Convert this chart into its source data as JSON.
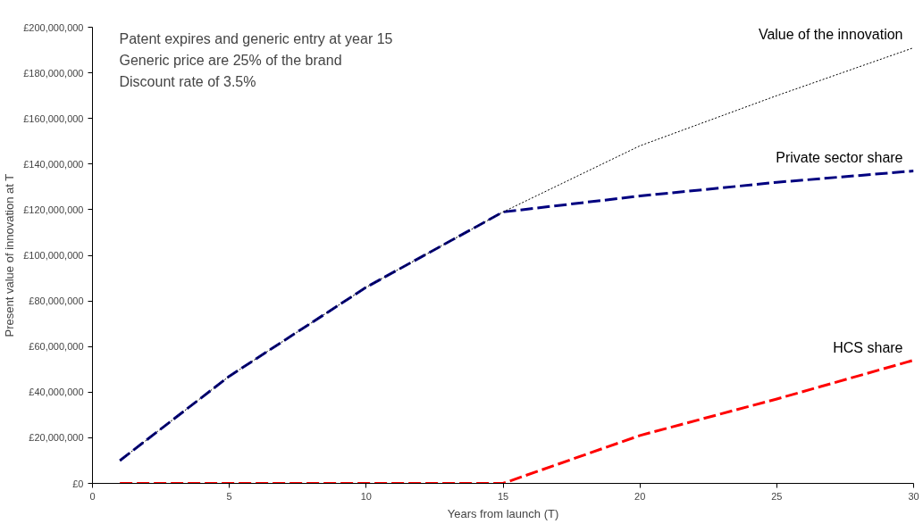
{
  "chart_data": {
    "type": "line",
    "xlabel": "Years from launch (T)",
    "ylabel": "Present value of innovation at T",
    "annotations": [
      "Patent expires and generic entry at year 15",
      "Generic price are 25% of the brand",
      "Discount rate of 3.5%"
    ],
    "x": [
      1,
      5,
      10,
      15,
      20,
      25,
      30
    ],
    "series": [
      {
        "name": "Value of the innovation",
        "color": "#000000",
        "line_style": "dotted",
        "values": [
          10000000,
          47000000,
          86000000,
          119000000,
          148000000,
          170000000,
          191000000
        ]
      },
      {
        "name": "Private sector share",
        "color": "#000080",
        "line_style": "dashed",
        "values": [
          10000000,
          47000000,
          86000000,
          119000000,
          126000000,
          132000000,
          137000000
        ]
      },
      {
        "name": "HCS share",
        "color": "#ff0000",
        "line_style": "dashed",
        "values": [
          0,
          0,
          0,
          0,
          21000000,
          37000000,
          54000000
        ]
      }
    ],
    "xlim": [
      0,
      30
    ],
    "xticks": [
      0,
      5,
      10,
      15,
      20,
      25,
      30
    ],
    "ylim": [
      0,
      200000000
    ],
    "yticks": [
      {
        "value": 0,
        "label": "£0"
      },
      {
        "value": 20000000,
        "label": "£20,000,000"
      },
      {
        "value": 40000000,
        "label": "£40,000,000"
      },
      {
        "value": 60000000,
        "label": "£60,000,000"
      },
      {
        "value": 80000000,
        "label": "£80,000,000"
      },
      {
        "value": 100000000,
        "label": "£100,000,000"
      },
      {
        "value": 120000000,
        "label": "£120,000,000"
      },
      {
        "value": 140000000,
        "label": "£140,000,000"
      },
      {
        "value": 160000000,
        "label": "£160,000,000"
      },
      {
        "value": 180000000,
        "label": "£180,000,000"
      },
      {
        "value": 200000000,
        "label": "£200,000,000"
      }
    ],
    "grid": false,
    "marker": "none"
  }
}
